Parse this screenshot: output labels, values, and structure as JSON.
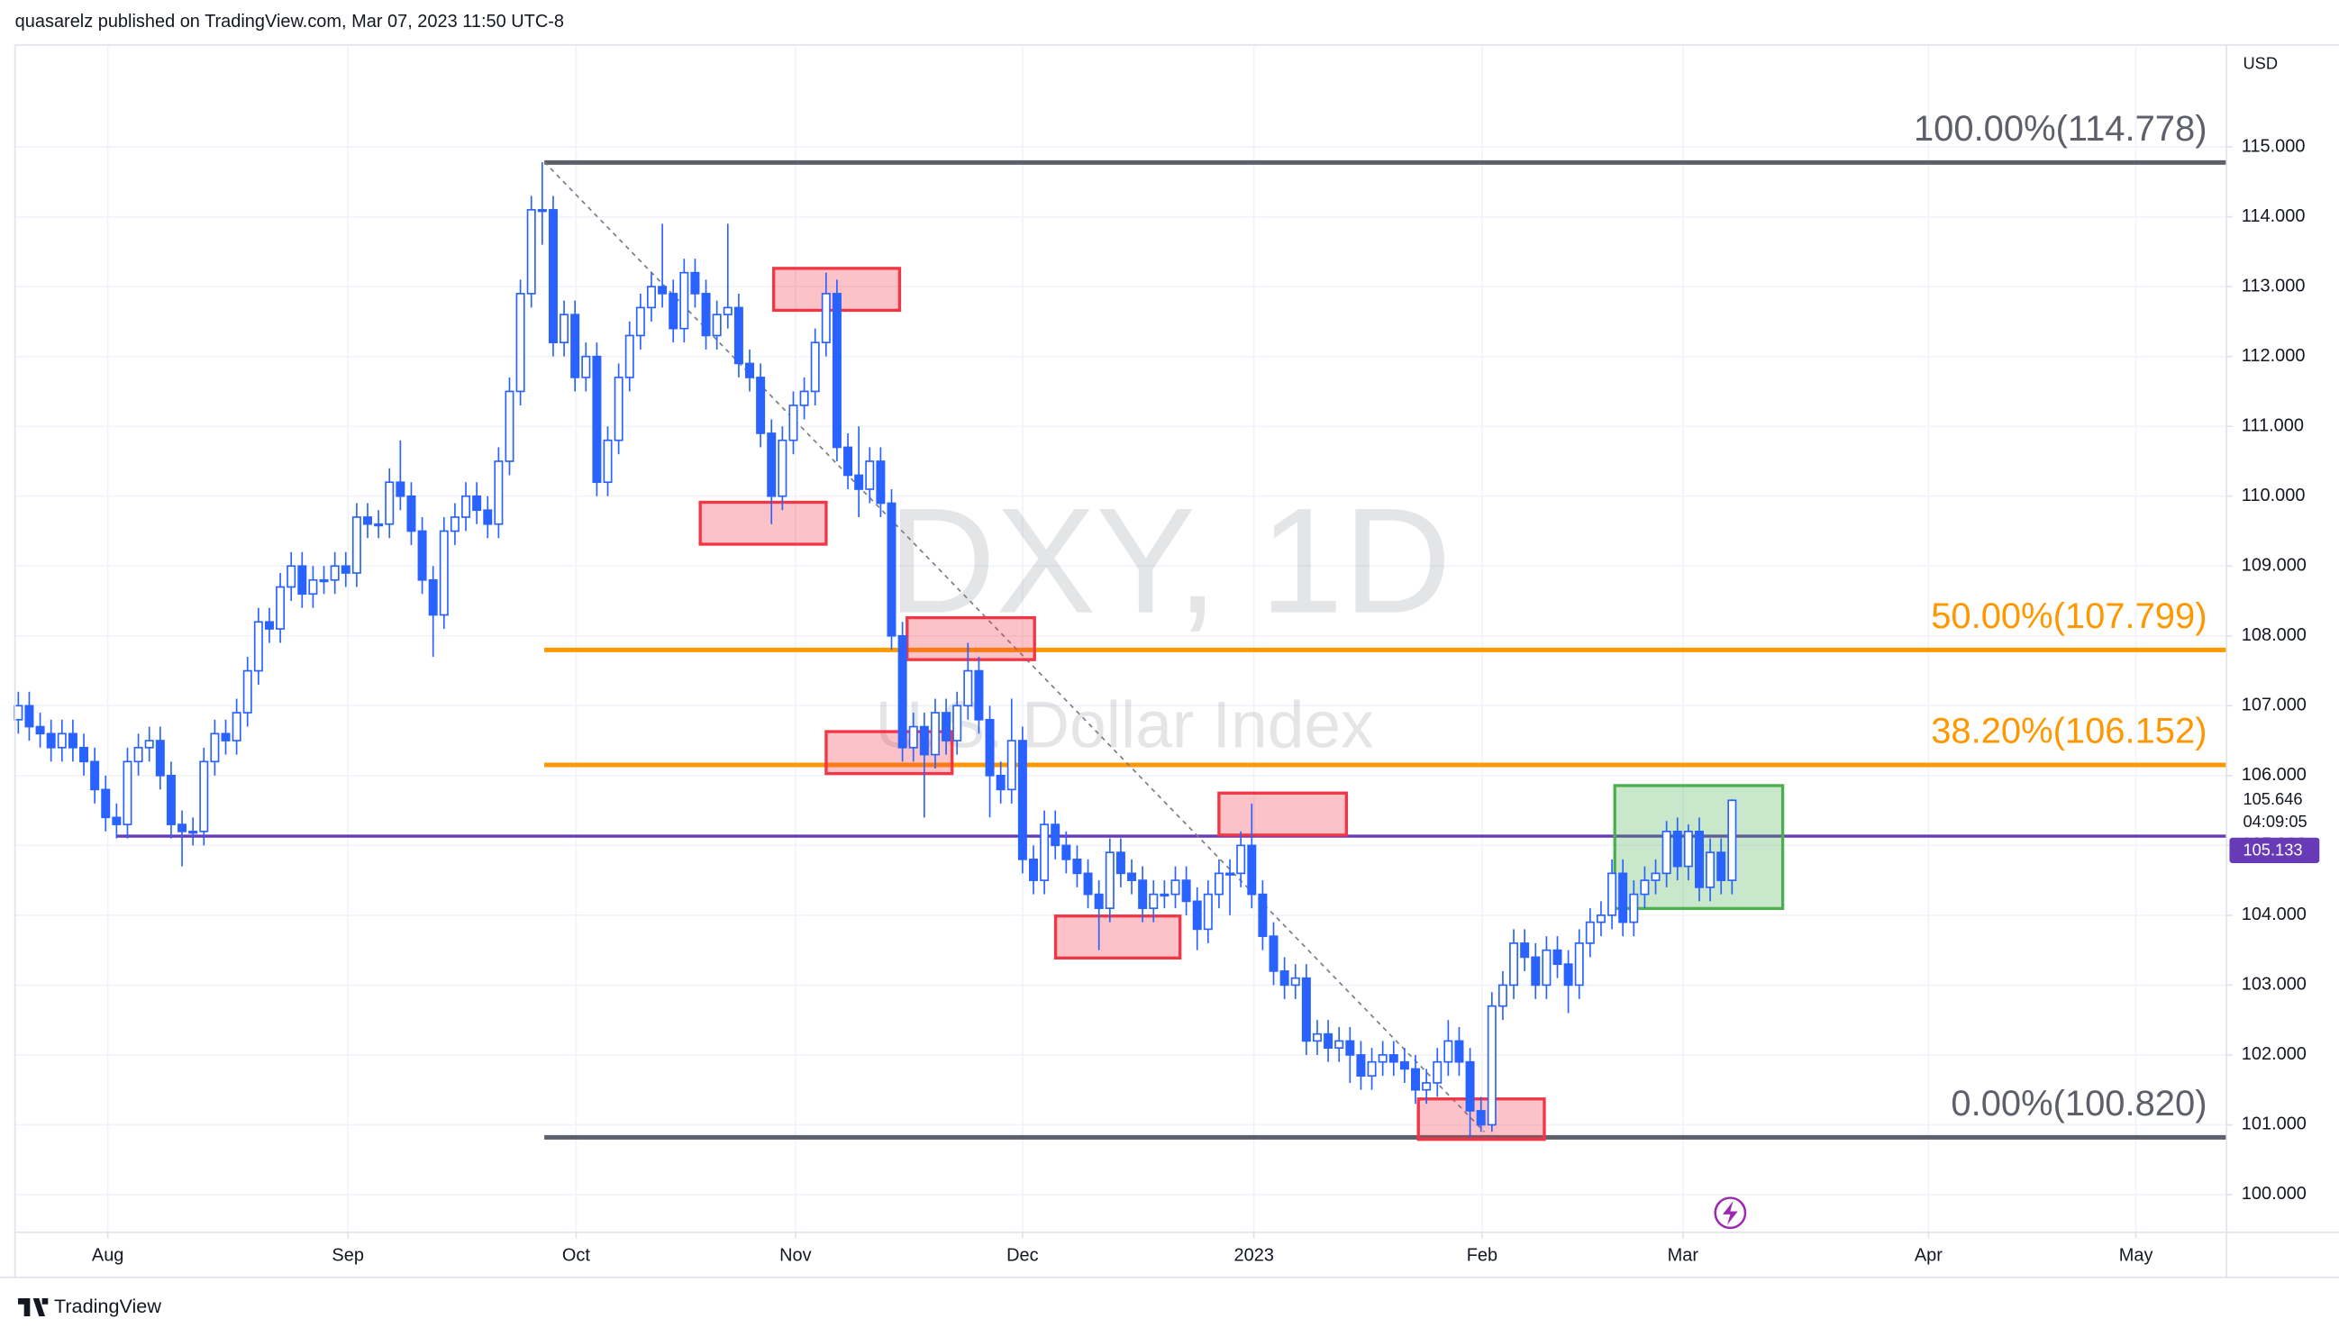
{
  "header": "quasarelz published on TradingView.com, Mar 07, 2023 11:50 UTC-8",
  "brand": "TradingView",
  "chart_data": {
    "type": "candlestick",
    "symbol_watermark": "DXY, 1D",
    "name_watermark": "U.S. Dollar Index",
    "currency": "USD",
    "color": "#2962ff",
    "grid": true,
    "open": [
      106.8,
      107.0,
      106.7,
      106.6,
      106.4,
      106.6,
      106.4,
      106.2,
      105.8,
      105.4,
      105.3,
      106.2,
      106.4,
      106.5,
      106.0,
      105.3,
      105.2,
      105.2,
      106.2,
      106.6,
      106.5,
      106.9,
      107.5,
      108.2,
      108.1,
      108.7,
      109.0,
      108.6,
      108.8,
      108.8,
      109.0,
      108.9,
      109.7,
      109.6,
      109.6,
      110.2,
      110.0,
      109.5,
      108.8,
      108.3,
      109.5,
      109.7,
      110.0,
      109.8,
      109.6,
      110.5,
      111.5,
      112.9,
      114.1,
      114.1,
      112.2,
      112.6,
      111.7,
      112.0,
      110.2,
      110.8,
      111.7,
      112.3,
      112.7,
      113.0,
      112.9,
      112.4,
      113.2,
      112.9,
      112.3,
      112.6,
      112.7,
      111.9,
      111.7,
      110.9,
      110.0,
      110.8,
      111.3,
      111.5,
      112.2,
      112.9,
      110.7,
      110.3,
      110.1,
      110.5,
      109.9,
      108.0,
      106.4,
      106.7,
      106.3,
      106.9,
      106.5,
      107.0,
      107.5,
      106.8,
      106.0,
      105.8,
      106.5,
      104.8,
      104.5,
      105.3,
      105.0,
      104.8,
      104.6,
      104.3,
      104.1,
      104.9,
      104.6,
      104.5,
      104.1,
      104.3,
      104.3,
      104.5,
      104.2,
      103.8,
      104.3,
      104.6,
      104.6,
      105.0,
      104.3,
      103.7,
      103.2,
      103.0,
      103.1,
      102.2,
      102.3,
      102.1,
      102.2,
      102.0,
      101.7,
      101.9,
      102.0,
      101.9,
      101.8,
      101.5,
      101.6,
      101.9,
      102.2,
      101.9,
      101.2,
      101.0,
      102.7,
      103.0,
      103.6,
      103.4,
      103.0,
      103.5,
      103.3,
      103.0,
      103.6,
      103.9,
      104.0,
      104.6,
      103.9,
      104.3,
      104.5,
      104.6,
      105.2,
      104.7,
      105.2,
      104.4,
      104.9,
      104.5
    ],
    "high": [
      107.2,
      107.2,
      106.9,
      106.8,
      106.8,
      106.8,
      106.6,
      106.4,
      106.0,
      105.6,
      106.4,
      106.6,
      106.7,
      106.7,
      106.2,
      105.5,
      105.4,
      106.4,
      106.8,
      106.8,
      107.1,
      107.7,
      108.4,
      108.4,
      108.9,
      109.2,
      109.2,
      109.0,
      109.0,
      109.2,
      109.2,
      109.9,
      109.9,
      109.8,
      110.4,
      110.8,
      110.2,
      109.7,
      109.0,
      109.7,
      109.9,
      110.2,
      110.2,
      110.0,
      110.7,
      111.7,
      113.1,
      114.3,
      114.78,
      114.3,
      112.8,
      112.8,
      112.2,
      112.2,
      111.0,
      111.9,
      112.5,
      112.9,
      113.2,
      113.9,
      113.1,
      113.4,
      113.4,
      113.1,
      112.8,
      113.9,
      112.9,
      112.1,
      111.9,
      111.1,
      111.0,
      111.5,
      111.7,
      112.4,
      113.2,
      113.1,
      110.9,
      111.0,
      110.7,
      110.7,
      110.1,
      108.2,
      106.9,
      106.9,
      107.1,
      107.1,
      107.2,
      107.9,
      107.7,
      107.0,
      106.2,
      107.1,
      106.7,
      105.0,
      105.5,
      105.5,
      105.2,
      105.0,
      104.8,
      104.5,
      105.1,
      105.1,
      104.8,
      104.7,
      104.5,
      104.5,
      104.7,
      104.7,
      104.4,
      104.5,
      104.8,
      104.8,
      105.2,
      105.6,
      104.5,
      103.9,
      103.4,
      103.3,
      103.3,
      102.5,
      102.5,
      102.4,
      102.4,
      102.2,
      102.1,
      102.2,
      102.2,
      102.1,
      102.0,
      101.8,
      102.1,
      102.5,
      102.4,
      102.1,
      101.4,
      102.9,
      103.2,
      103.8,
      103.8,
      103.6,
      103.7,
      103.7,
      103.5,
      103.8,
      104.1,
      104.2,
      104.8,
      104.8,
      104.5,
      104.7,
      104.8,
      105.35,
      105.4,
      105.3,
      105.4,
      105.1,
      105.1,
      105.66
    ],
    "low": [
      106.6,
      106.5,
      106.4,
      106.2,
      106.2,
      106.2,
      106.0,
      105.6,
      105.2,
      105.1,
      105.1,
      106.0,
      106.2,
      105.8,
      105.1,
      104.7,
      105.0,
      105.0,
      106.0,
      106.3,
      106.3,
      106.7,
      107.3,
      107.9,
      107.9,
      108.5,
      108.4,
      108.4,
      108.6,
      108.6,
      108.7,
      108.7,
      109.4,
      109.4,
      109.4,
      109.8,
      109.3,
      108.6,
      107.7,
      108.1,
      109.3,
      109.5,
      109.6,
      109.4,
      109.4,
      110.3,
      111.3,
      112.7,
      113.6,
      112.0,
      112.0,
      111.5,
      111.5,
      110.0,
      110.0,
      110.6,
      111.5,
      112.1,
      112.5,
      112.7,
      112.2,
      112.2,
      112.7,
      112.1,
      112.1,
      112.4,
      111.7,
      111.5,
      110.7,
      109.6,
      109.8,
      110.6,
      111.1,
      111.3,
      112.0,
      110.5,
      110.1,
      109.7,
      109.9,
      109.7,
      107.8,
      106.2,
      106.2,
      105.4,
      106.1,
      106.3,
      106.3,
      106.8,
      106.6,
      105.4,
      105.6,
      105.6,
      104.6,
      104.3,
      104.3,
      104.8,
      104.6,
      104.4,
      104.1,
      103.5,
      103.9,
      104.4,
      104.3,
      103.9,
      103.9,
      104.1,
      104.1,
      104.0,
      103.5,
      103.6,
      104.1,
      104.0,
      104.4,
      104.1,
      103.5,
      103.0,
      102.8,
      102.8,
      102.0,
      102.0,
      101.9,
      101.9,
      101.6,
      101.5,
      101.5,
      101.7,
      101.7,
      101.6,
      101.3,
      101.3,
      101.4,
      101.7,
      101.7,
      100.82,
      100.9,
      100.9,
      102.5,
      102.8,
      103.2,
      102.8,
      102.8,
      103.1,
      102.6,
      102.8,
      103.4,
      103.7,
      103.8,
      103.7,
      103.7,
      104.1,
      104.3,
      104.4,
      104.5,
      104.5,
      104.2,
      104.2,
      104.3,
      104.3
    ],
    "close": [
      107.0,
      106.7,
      106.6,
      106.4,
      106.6,
      106.4,
      106.2,
      105.8,
      105.4,
      105.3,
      106.2,
      106.4,
      106.5,
      106.0,
      105.3,
      105.2,
      105.2,
      106.2,
      106.6,
      106.5,
      106.9,
      107.5,
      108.2,
      108.1,
      108.7,
      109.0,
      108.6,
      108.8,
      108.8,
      109.0,
      108.9,
      109.7,
      109.6,
      109.6,
      110.2,
      110.0,
      109.5,
      108.8,
      108.3,
      109.5,
      109.7,
      110.0,
      109.8,
      109.6,
      110.5,
      111.5,
      112.9,
      114.1,
      114.1,
      112.2,
      112.6,
      111.7,
      112.0,
      110.2,
      110.8,
      111.7,
      112.3,
      112.7,
      113.0,
      112.9,
      112.4,
      113.2,
      112.9,
      112.3,
      112.6,
      112.7,
      111.9,
      111.7,
      110.9,
      110.0,
      110.8,
      111.3,
      111.5,
      112.2,
      112.9,
      110.7,
      110.3,
      110.1,
      110.5,
      109.9,
      108.0,
      106.4,
      106.7,
      106.3,
      106.9,
      106.5,
      107.0,
      107.5,
      106.8,
      106.0,
      105.8,
      106.5,
      104.8,
      104.5,
      105.3,
      105.0,
      104.8,
      104.6,
      104.3,
      104.1,
      104.9,
      104.6,
      104.5,
      104.1,
      104.3,
      104.3,
      104.5,
      104.2,
      103.8,
      104.3,
      104.6,
      104.6,
      105.0,
      104.3,
      103.7,
      103.2,
      103.0,
      103.1,
      102.2,
      102.3,
      102.1,
      102.2,
      102.0,
      101.7,
      101.9,
      102.0,
      101.9,
      101.8,
      101.5,
      101.6,
      101.9,
      102.2,
      101.9,
      101.2,
      101.0,
      102.7,
      103.0,
      103.6,
      103.4,
      103.0,
      103.5,
      103.3,
      103.0,
      103.6,
      103.9,
      104.0,
      104.6,
      103.9,
      104.3,
      104.5,
      104.6,
      105.2,
      104.7,
      105.2,
      104.4,
      104.9,
      104.5,
      105.646
    ],
    "xlim": [
      -0.3,
      202.3
    ],
    "xticks": [
      {
        "value": 8.2,
        "label": "Aug"
      },
      {
        "value": 30.2,
        "label": "Sep"
      },
      {
        "value": 51.1,
        "label": "Oct"
      },
      {
        "value": 71.2,
        "label": "Nov"
      },
      {
        "value": 92,
        "label": "Dec"
      },
      {
        "value": 113.2,
        "label": "2023"
      },
      {
        "value": 134.1,
        "label": "Feb"
      },
      {
        "value": 152.5,
        "label": "Mar"
      },
      {
        "value": 175,
        "label": "Apr"
      },
      {
        "value": 194,
        "label": "May"
      }
    ],
    "ylim": [
      99.46,
      116.46
    ],
    "yticks": [
      {
        "value": 100,
        "label": "100.000"
      },
      {
        "value": 101,
        "label": "101.000"
      },
      {
        "value": 102,
        "label": "102.000"
      },
      {
        "value": 103,
        "label": "103.000"
      },
      {
        "value": 104,
        "label": "104.000"
      },
      {
        "value": 105,
        "label": "105.000"
      },
      {
        "value": 106,
        "label": "106.000"
      },
      {
        "value": 107,
        "label": "107.000"
      },
      {
        "value": 108,
        "label": "108.000"
      },
      {
        "value": 109,
        "label": "109.000"
      },
      {
        "value": 110,
        "label": "110.000"
      },
      {
        "value": 111,
        "label": "111.000"
      },
      {
        "value": 112,
        "label": "112.000"
      },
      {
        "value": 113,
        "label": "113.000"
      },
      {
        "value": 114,
        "label": "114.000"
      },
      {
        "value": 115,
        "label": "115.000"
      }
    ],
    "fib_levels": [
      {
        "label": "100.00%(114.778)",
        "value": 114.778,
        "color": "#5d606b"
      },
      {
        "label": "50.00%(107.799)",
        "value": 107.799,
        "color": "#ff9800"
      },
      {
        "label": "38.20%(106.152)",
        "value": 106.152,
        "color": "#ff9800"
      },
      {
        "label": "0.00%(100.820)",
        "value": 100.82,
        "color": "#5d606b"
      }
    ],
    "horizontal_line": {
      "value": 105.133,
      "color": "#673ab7"
    },
    "current_price": 105.646,
    "countdown": "04:09:05"
  }
}
